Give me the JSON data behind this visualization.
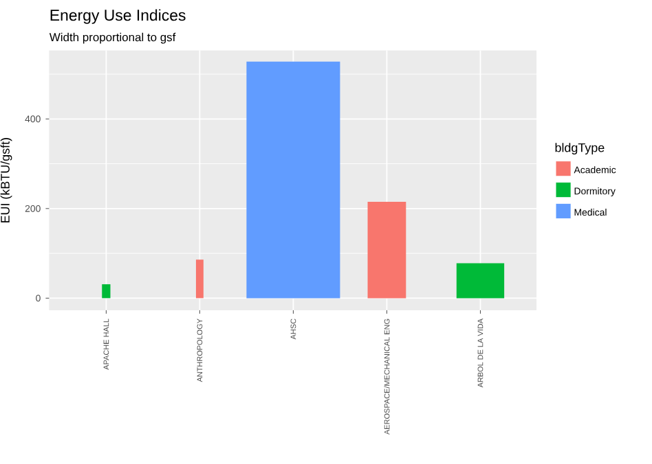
{
  "chart_data": {
    "type": "bar",
    "title": "Energy Use Indices",
    "subtitle": "Width proportional to gsf",
    "ylabel": "EUI (kBTU/gsft)",
    "legend_title": "bldgType",
    "categories": [
      "APACHE HALL",
      "ANTHROPOLOGY",
      "AHSC",
      "AEROSPACE/MECHANICAL ENG",
      "ARBOL DE LA VIDA"
    ],
    "series": [
      {
        "name": "Academic",
        "color": "#f8766d",
        "values": [
          null,
          86,
          null,
          215,
          null
        ]
      },
      {
        "name": "Dormitory",
        "color": "#00ba38",
        "values": [
          31,
          null,
          null,
          null,
          78
        ]
      },
      {
        "name": "Medical",
        "color": "#619cff",
        "values": [
          null,
          null,
          528,
          null,
          null
        ]
      }
    ],
    "ylim": [
      -27,
      553
    ],
    "yticks": [
      0,
      {
        "value": 100,
        "label": null
      },
      200,
      {
        "value": 300,
        "label": null
      },
      400,
      {
        "value": 500,
        "label": null
      }
    ],
    "grid": true,
    "legend": "right"
  }
}
